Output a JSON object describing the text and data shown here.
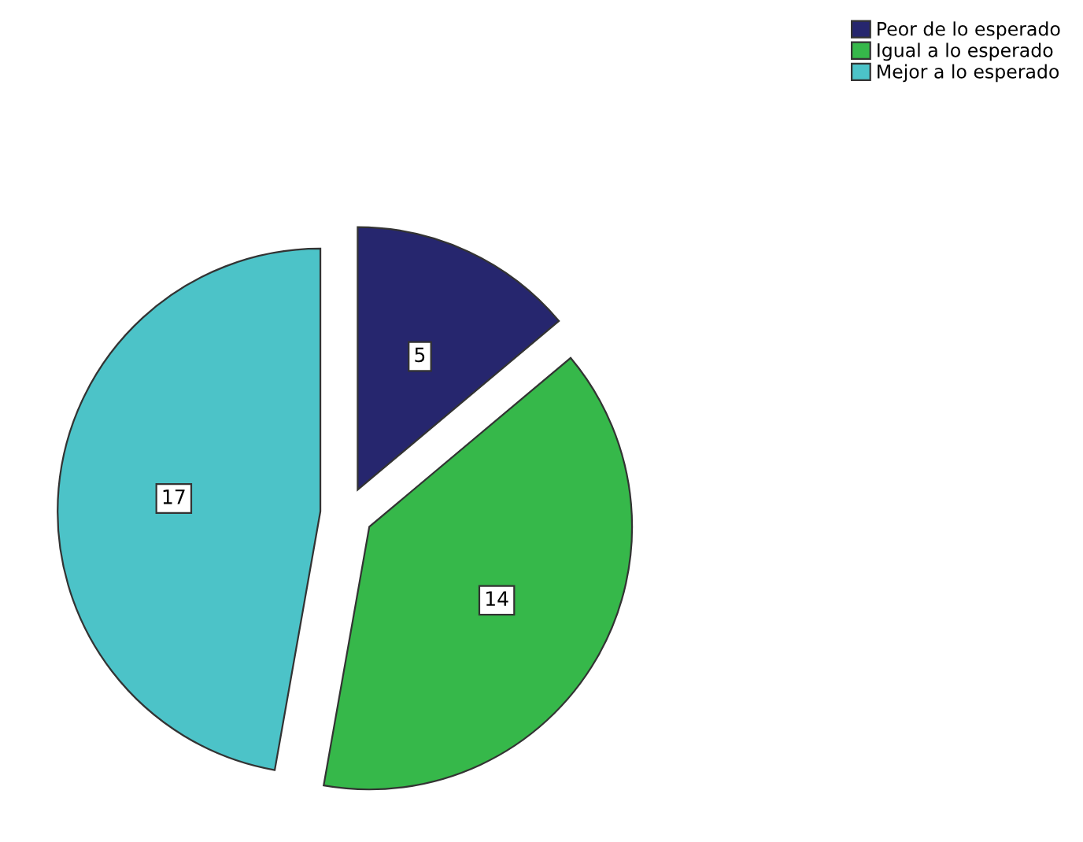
{
  "chart_data": {
    "type": "pie",
    "categories": [
      "Peor de lo esperado",
      "Igual a lo esperado",
      "Mejor a lo esperado"
    ],
    "values": [
      5,
      14,
      17
    ],
    "colors": [
      "#26266e",
      "#36b84a",
      "#4cc3c8"
    ],
    "data_labels": true,
    "legend": "top right"
  }
}
